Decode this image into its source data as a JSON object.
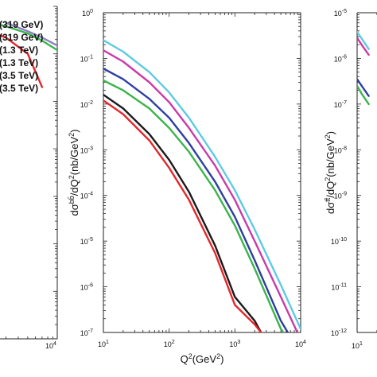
{
  "chart_data": [
    {
      "type": "line",
      "panel": "left (cropped)",
      "xscale": "log",
      "yscale": "log",
      "xlim": [
        10,
        10000
      ],
      "x_tick_labels": [
        {
          "base": "10",
          "exp": "4"
        }
      ],
      "legend": {
        "placement": "top-left",
        "entries": [
          "(319 GeV)",
          "(319 GeV)",
          "(1.3 TeV)",
          "(1.3 TeV)",
          "(3.5 TeV)",
          "(3.5 TeV)"
        ],
        "colors": [
          "#e5262b",
          "#1a1a1a",
          "#2e3ea1",
          "#c93aa8",
          "#3bb44a",
          "#5dcbe0"
        ]
      },
      "series": [
        {
          "color": "#8c7fc8",
          "x": [
            3000,
            5000,
            7000,
            10000
          ],
          "y": [
            0.45,
            0.3,
            0.22,
            0.15
          ]
        },
        {
          "color": "#3bb44a",
          "x": [
            1500,
            3000,
            5000,
            7000,
            10000
          ],
          "y": [
            0.55,
            0.38,
            0.27,
            0.19,
            0.12
          ]
        },
        {
          "color": "#e5262b",
          "x": [
            1500,
            3000,
            5000,
            7000
          ],
          "y": [
            0.37,
            0.22,
            0.1,
            0.02
          ]
        }
      ]
    },
    {
      "type": "line",
      "panel": "middle",
      "xscale": "log",
      "yscale": "log",
      "xlim": [
        10,
        10000
      ],
      "ylim": [
        1e-07,
        1
      ],
      "xlabel": {
        "text": "Q",
        "sup": "2",
        "rest": "(GeV",
        "sup2": "2",
        "end": ")"
      },
      "ylabel": {
        "d1": "dσ",
        "sup": "bb̄",
        "d2": "/dQ",
        "sup2": "2",
        "d3": "(nb/GeV",
        "sup3": "2",
        "d4": ")"
      },
      "x_tick_labels": [
        {
          "base": "10",
          "exp": "1"
        },
        {
          "base": "10",
          "exp": "2"
        },
        {
          "base": "10",
          "exp": "3"
        },
        {
          "base": "10",
          "exp": "4"
        }
      ],
      "y_tick_labels": [
        {
          "base": "10",
          "exp": "-7"
        },
        {
          "base": "10",
          "exp": "-6"
        },
        {
          "base": "10",
          "exp": "-5"
        },
        {
          "base": "10",
          "exp": "-4"
        },
        {
          "base": "10",
          "exp": "-3"
        },
        {
          "base": "10",
          "exp": "-2"
        },
        {
          "base": "10",
          "exp": "-1"
        },
        {
          "base": "10",
          "exp": "0"
        }
      ],
      "series": [
        {
          "color": "#5dcbe0",
          "x": [
            10,
            20,
            50,
            100,
            200,
            500,
            1000,
            2000,
            5000,
            10000
          ],
          "y": [
            0.25,
            0.14,
            0.05,
            0.018,
            0.005,
            0.0007,
            0.00013,
            1.8e-05,
            1.1e-06,
            1.2e-07
          ]
        },
        {
          "color": "#c93aa8",
          "x": [
            10,
            20,
            50,
            100,
            200,
            500,
            1000,
            2000,
            5000,
            10000
          ],
          "y": [
            0.15,
            0.085,
            0.03,
            0.011,
            0.003,
            0.00045,
            8e-05,
            1e-05,
            6e-07,
            7e-08
          ]
        },
        {
          "color": "#2e3ea1",
          "x": [
            10,
            20,
            50,
            100,
            200,
            500,
            1000,
            2000,
            5000,
            7000
          ],
          "y": [
            0.06,
            0.035,
            0.013,
            0.005,
            0.0014,
            0.0002,
            3.4e-05,
            3.8e-06,
            1.8e-07,
            8e-08
          ]
        },
        {
          "color": "#3bb44a",
          "x": [
            10,
            20,
            50,
            100,
            200,
            500,
            1000,
            2000,
            5000,
            6500
          ],
          "y": [
            0.033,
            0.02,
            0.008,
            0.003,
            0.0009,
            0.00013,
            2.2e-05,
            2.5e-06,
            1.2e-07,
            7e-08
          ]
        },
        {
          "color": "#1a1a1a",
          "x": [
            10,
            20,
            50,
            100,
            200,
            500,
            1000,
            2000,
            2500
          ],
          "y": [
            0.016,
            0.008,
            0.0022,
            0.0006,
            0.00012,
            8e-06,
            6e-07,
            1.8e-07,
            1e-07
          ]
        },
        {
          "color": "#e5262b",
          "x": [
            10,
            20,
            50,
            100,
            200,
            500,
            1000,
            2000,
            2500
          ],
          "y": [
            0.012,
            0.006,
            0.0016,
            0.0004,
            8e-05,
            5.5e-06,
            4e-07,
            1.5e-07,
            1e-07
          ]
        }
      ]
    },
    {
      "type": "line",
      "panel": "right (cropped)",
      "xscale": "log",
      "yscale": "log",
      "xlim": [
        10,
        10000
      ],
      "ylim": [
        1e-12,
        1e-05
      ],
      "ylabel": {
        "d1": "dσ",
        "sup": "tt̄",
        "d2": "/dQ",
        "sup2": "2",
        "d3": "(nb/GeV",
        "sup3": "2",
        "d4": ")"
      },
      "x_tick_labels": [
        {
          "base": "10",
          "exp": "1"
        }
      ],
      "y_tick_labels": [
        {
          "base": "10",
          "exp": "-12"
        },
        {
          "base": "10",
          "exp": "-11"
        },
        {
          "base": "10",
          "exp": "-10"
        },
        {
          "base": "10",
          "exp": "-9"
        },
        {
          "base": "10",
          "exp": "-8"
        },
        {
          "base": "10",
          "exp": "-7"
        },
        {
          "base": "10",
          "exp": "-6"
        },
        {
          "base": "10",
          "exp": "-5"
        }
      ],
      "series": [
        {
          "color": "#5dcbe0",
          "x": [
            10,
            12,
            15
          ],
          "y": [
            3.8e-06,
            2.6e-06,
            1.6e-06
          ]
        },
        {
          "color": "#c93aa8",
          "x": [
            10,
            12,
            15
          ],
          "y": [
            2.8e-06,
            1.9e-06,
            1.2e-06
          ]
        },
        {
          "color": "#2e3ea1",
          "x": [
            10,
            12,
            15
          ],
          "y": [
            3.5e-07,
            2.4e-07,
            1.5e-07
          ]
        },
        {
          "color": "#3bb44a",
          "x": [
            10,
            12,
            15
          ],
          "y": [
            2.5e-07,
            1.6e-07,
            1e-07
          ]
        }
      ]
    }
  ]
}
